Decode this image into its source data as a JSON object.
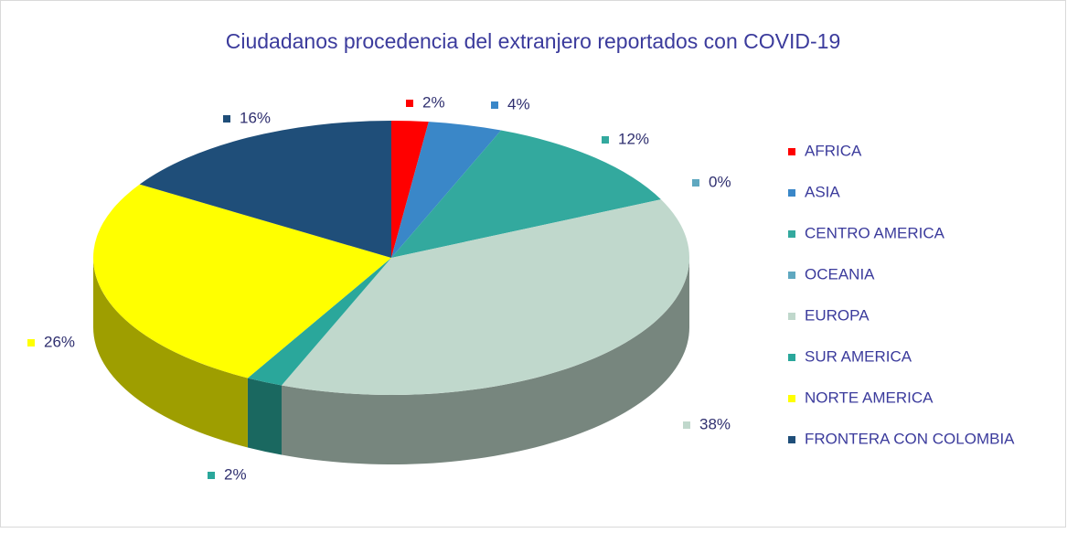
{
  "chart_data": {
    "type": "pie3d",
    "title": "Ciudadanos procedencia del extranjero reportados con COVID-19",
    "categories": [
      "AFRICA",
      "ASIA",
      "CENTRO AMERICA",
      "OCEANIA",
      "EUROPA",
      "SUR AMERICA",
      "NORTE AMERICA",
      "FRONTERA CON COLOMBIA"
    ],
    "values": [
      2,
      4,
      12,
      0,
      38,
      2,
      26,
      16
    ],
    "value_labels": [
      "2%",
      "4%",
      "12%",
      "0%",
      "38%",
      "2%",
      "26%",
      "16%"
    ],
    "colors": [
      "#ff0000",
      "#3a87c8",
      "#33a99e",
      "#5fa8c0",
      "#c0d8cc",
      "#2aa79b",
      "#ffff00",
      "#1f4e79"
    ],
    "legend": "right"
  }
}
